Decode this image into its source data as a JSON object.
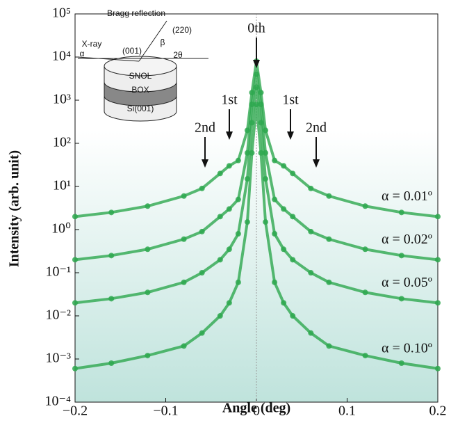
{
  "chart_data": {
    "type": "scatter",
    "xlabel": "Angle (deg)",
    "ylabel": "Intensity (arb. unit)",
    "log_y": true,
    "xlim": [
      -0.2,
      0.2
    ],
    "xticks": [
      {
        "value": -0.2,
        "label": "−0.2"
      },
      {
        "value": -0.1,
        "label": "−0.1"
      },
      0,
      0.1,
      0.2
    ],
    "ylim": [
      0.0001,
      100000
    ],
    "yticks": [
      {
        "value": 100000,
        "label": "10⁵"
      },
      {
        "value": 10000,
        "label": "10⁴"
      },
      {
        "value": 1000,
        "label": "10³"
      },
      {
        "value": 100,
        "label": "10²"
      },
      {
        "value": 10,
        "label": "10¹"
      },
      {
        "value": 1,
        "label": "10⁰"
      },
      {
        "value": 0.1,
        "label": "10⁻¹"
      },
      {
        "value": 0.01,
        "label": "10⁻²"
      },
      {
        "value": 0.001,
        "label": "10⁻³"
      },
      {
        "value": 0.0001,
        "label": "10⁻⁴"
      }
    ],
    "x": [
      -0.2,
      -0.16,
      -0.12,
      -0.08,
      -0.06,
      -0.04,
      -0.03,
      -0.02,
      -0.01,
      -0.005,
      0,
      0.005,
      0.01,
      0.02,
      0.03,
      0.04,
      0.06,
      0.08,
      0.12,
      0.16,
      0.2
    ],
    "series": [
      {
        "name": "α = 0.01º",
        "color": "#2ea84f",
        "values": [
          2,
          2.5,
          3.5,
          6,
          9,
          20,
          30,
          40,
          200,
          1500,
          8000,
          1500,
          200,
          40,
          30,
          20,
          9,
          6,
          3.5,
          2.5,
          2
        ]
      },
      {
        "name": "α = 0.02º",
        "color": "#2ea84f",
        "values": [
          0.2,
          0.25,
          0.35,
          0.6,
          0.9,
          2,
          3,
          5,
          60,
          800,
          4000,
          800,
          60,
          5,
          3,
          2,
          0.9,
          0.6,
          0.35,
          0.25,
          0.2
        ]
      },
      {
        "name": "α = 0.05º",
        "color": "#2ea84f",
        "values": [
          0.02,
          0.025,
          0.035,
          0.06,
          0.1,
          0.2,
          0.35,
          0.8,
          15,
          300,
          2000,
          300,
          15,
          0.8,
          0.35,
          0.2,
          0.1,
          0.06,
          0.035,
          0.025,
          0.02
        ]
      },
      {
        "name": "α = 0.10º",
        "color": "#2ea84f",
        "values": [
          0.0006,
          0.0008,
          0.0012,
          0.002,
          0.004,
          0.01,
          0.02,
          0.06,
          1.5,
          60,
          800,
          60,
          1.5,
          0.06,
          0.02,
          0.01,
          0.004,
          0.002,
          0.0012,
          0.0008,
          0.0006
        ]
      }
    ],
    "annotations": [
      "0th",
      "1st",
      "1st",
      "2nd",
      "2nd"
    ],
    "inset_labels": [
      "Bragg reflection",
      "(220)",
      "X-ray",
      "(001)",
      "β",
      "α",
      "2θ",
      "SNOL",
      "BOX",
      "Si(001)"
    ]
  }
}
